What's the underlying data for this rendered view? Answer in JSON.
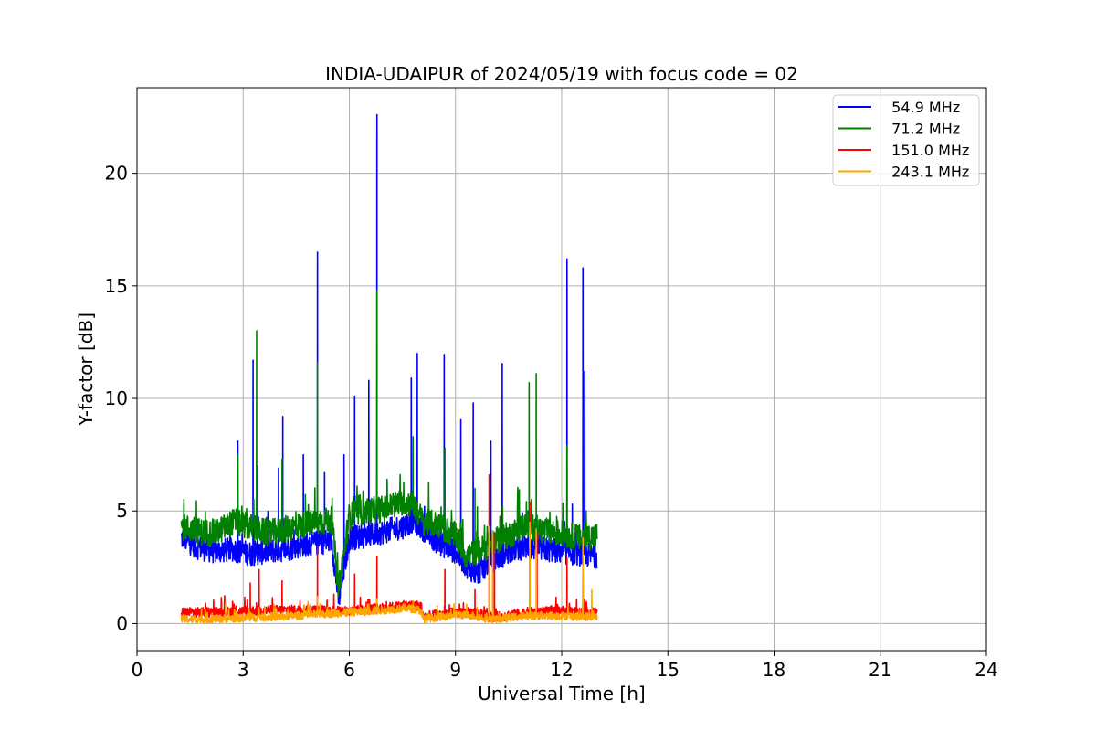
{
  "chart_data": {
    "type": "line",
    "title": "INDIA-UDAIPUR of 2024/05/19 with focus code = 02",
    "xlabel": "Universal Time [h]",
    "ylabel": "Y-factor [dB]",
    "xlim": [
      0,
      24
    ],
    "ylim": [
      -1.2,
      23.8
    ],
    "xticks": [
      0,
      3,
      6,
      9,
      12,
      15,
      18,
      21,
      24
    ],
    "yticks": [
      0,
      5,
      10,
      15,
      20
    ],
    "grid": true,
    "legend_position": "top-right",
    "data_range_hours": [
      1.25,
      13.0
    ],
    "series": [
      {
        "name": "  54.9 MHz",
        "color": "#0000ff",
        "x": [
          1.3,
          1.7,
          2.2,
          2.7,
          3.2,
          3.7,
          4.2,
          4.7,
          5.2,
          5.5,
          5.7,
          6.0,
          6.5,
          7.0,
          7.5,
          7.8,
          8.1,
          8.5,
          9.0,
          9.3,
          9.6,
          10.0,
          10.3,
          10.6,
          11.0,
          11.5,
          12.0,
          12.5,
          13.0
        ],
        "values": [
          3.8,
          3.4,
          3.2,
          3.3,
          3.1,
          3.2,
          3.3,
          3.5,
          3.6,
          3.7,
          1.0,
          3.8,
          3.9,
          4.1,
          4.3,
          4.6,
          4.2,
          3.6,
          3.2,
          2.6,
          2.2,
          2.8,
          3.0,
          3.3,
          3.4,
          3.3,
          3.2,
          3.1,
          3.0
        ],
        "spikes": [
          [
            2.85,
            8.1
          ],
          [
            3.28,
            11.7
          ],
          [
            3.4,
            7.0
          ],
          [
            4.0,
            6.9
          ],
          [
            4.12,
            9.2
          ],
          [
            4.7,
            7.5
          ],
          [
            5.1,
            16.5
          ],
          [
            5.3,
            6.7
          ],
          [
            5.85,
            7.5
          ],
          [
            6.15,
            10.1
          ],
          [
            6.55,
            10.8
          ],
          [
            6.78,
            22.6
          ],
          [
            7.75,
            10.9
          ],
          [
            7.92,
            12.0
          ],
          [
            8.68,
            11.95
          ],
          [
            9.15,
            9.05
          ],
          [
            9.5,
            9.8
          ],
          [
            10.0,
            8.1
          ],
          [
            10.32,
            11.55
          ],
          [
            11.05,
            5.0
          ],
          [
            12.15,
            16.2
          ],
          [
            12.3,
            5.3
          ],
          [
            12.6,
            15.8
          ],
          [
            12.65,
            11.2
          ]
        ]
      },
      {
        "name": "  71.2 MHz",
        "color": "#008000",
        "x": [
          1.3,
          1.7,
          2.2,
          2.7,
          3.2,
          3.7,
          4.2,
          4.7,
          5.2,
          5.5,
          5.7,
          6.0,
          6.5,
          7.0,
          7.5,
          7.8,
          8.1,
          8.5,
          9.0,
          9.3,
          9.6,
          10.0,
          10.3,
          10.6,
          11.0,
          11.5,
          12.0,
          12.5,
          13.0
        ],
        "values": [
          4.3,
          4.1,
          4.0,
          4.5,
          4.3,
          4.0,
          4.2,
          4.4,
          4.5,
          4.6,
          1.5,
          4.8,
          5.0,
          5.1,
          5.4,
          5.3,
          4.5,
          4.4,
          3.9,
          3.0,
          3.2,
          3.5,
          3.8,
          4.0,
          4.4,
          4.1,
          4.0,
          3.8,
          3.9
        ],
        "spikes": [
          [
            2.85,
            7.5
          ],
          [
            3.38,
            13.0
          ],
          [
            4.1,
            7.3
          ],
          [
            5.1,
            11.6
          ],
          [
            6.78,
            14.8
          ],
          [
            7.8,
            8.3
          ],
          [
            8.7,
            7.8
          ],
          [
            9.55,
            6.0
          ],
          [
            11.08,
            10.7
          ],
          [
            11.28,
            11.1
          ],
          [
            12.15,
            7.9
          ]
        ]
      },
      {
        "name": "  151.0 MHz",
        "color": "#ff0000",
        "x": [
          1.3,
          2.0,
          3.0,
          4.0,
          5.0,
          6.0,
          7.0,
          7.6,
          8.0,
          8.1,
          9.0,
          9.5,
          10.0,
          10.2,
          11.0,
          12.0,
          12.6,
          13.0
        ],
        "values": [
          0.5,
          0.5,
          0.55,
          0.6,
          0.6,
          0.55,
          0.7,
          0.8,
          0.8,
          0.3,
          0.5,
          0.5,
          0.3,
          0.3,
          0.5,
          0.55,
          0.5,
          0.5
        ],
        "spikes": [
          [
            3.2,
            1.8
          ],
          [
            3.45,
            2.4
          ],
          [
            4.1,
            1.9
          ],
          [
            5.1,
            3.4
          ],
          [
            6.15,
            2.2
          ],
          [
            6.78,
            3.0
          ],
          [
            8.7,
            2.4
          ],
          [
            9.55,
            1.5
          ],
          [
            9.95,
            6.6
          ],
          [
            10.1,
            4.0
          ],
          [
            11.1,
            5.4
          ],
          [
            11.3,
            4.0
          ],
          [
            12.15,
            2.9
          ],
          [
            12.6,
            2.3
          ]
        ]
      },
      {
        "name": "  243.1 MHz",
        "color": "#ffa500",
        "x": [
          1.3,
          2.0,
          3.0,
          4.0,
          5.0,
          6.0,
          7.0,
          7.6,
          8.0,
          8.1,
          9.0,
          9.5,
          10.0,
          10.2,
          11.0,
          12.0,
          12.6,
          13.0
        ],
        "values": [
          0.2,
          0.2,
          0.25,
          0.3,
          0.4,
          0.5,
          0.6,
          0.7,
          0.6,
          0.2,
          0.4,
          0.35,
          0.2,
          0.2,
          0.35,
          0.35,
          0.3,
          0.3
        ],
        "spikes": [
          [
            2.5,
            0.9
          ],
          [
            5.1,
            1.2
          ],
          [
            6.78,
            1.1
          ],
          [
            9.95,
            4.3
          ],
          [
            10.05,
            4.1
          ],
          [
            11.1,
            4.5
          ],
          [
            11.28,
            4.2
          ],
          [
            12.6,
            3.8
          ],
          [
            12.85,
            1.5
          ]
        ]
      }
    ]
  }
}
